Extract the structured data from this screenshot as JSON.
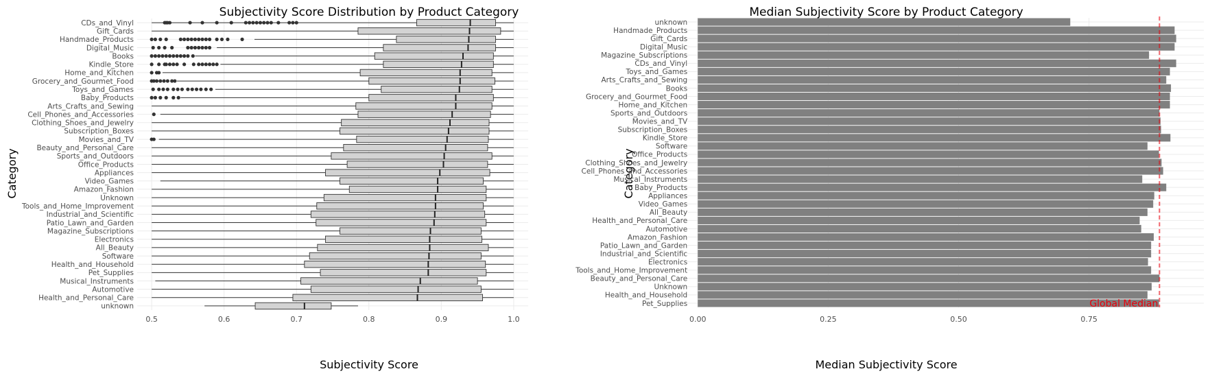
{
  "chart_data": [
    {
      "type": "box",
      "title": "Subjectivity Score Distribution by Product Category",
      "xlabel": "Subjectivity Score",
      "ylabel": "Category",
      "xlim": [
        0.48,
        1.02
      ],
      "xticks": [
        0.5,
        0.6,
        0.7,
        0.8,
        0.9,
        1.0
      ],
      "xtick_labels": [
        "0.5",
        "0.6",
        "0.7",
        "0.8",
        "0.9",
        "1.0"
      ],
      "grid": true,
      "box_color": "#d3d3d3",
      "categories": [
        "CDs_and_Vinyl",
        "Gift_Cards",
        "Handmade_Products",
        "Digital_Music",
        "Books",
        "Kindle_Store",
        "Home_and_Kitchen",
        "Grocery_and_Gourmet_Food",
        "Toys_and_Games",
        "Baby_Products",
        "Arts_Crafts_and_Sewing",
        "Cell_Phones_and_Accessories",
        "Clothing_Shoes_and_Jewelry",
        "Subscription_Boxes",
        "Movies_and_TV",
        "Beauty_and_Personal_Care",
        "Sports_and_Outdoors",
        "Office_Products",
        "Appliances",
        "Video_Games",
        "Amazon_Fashion",
        "Unknown",
        "Tools_and_Home_Improvement",
        "Industrial_and_Scientific",
        "Patio_Lawn_and_Garden",
        "Magazine_Subscriptions",
        "Electronics",
        "All_Beauty",
        "Software",
        "Health_and_Household",
        "Pet_Supplies",
        "Musical_Instruments",
        "Automotive",
        "Health_and_Personal_Care",
        "unknown"
      ],
      "boxes": [
        {
          "min": 0.5,
          "q1": 0.866,
          "median": 0.94,
          "q3": 0.975,
          "max": 1.0,
          "outliers": [
            0.518,
            0.52,
            0.522,
            0.525,
            0.553,
            0.57,
            0.59,
            0.61,
            0.63,
            0.635,
            0.64,
            0.645,
            0.65,
            0.655,
            0.66,
            0.665,
            0.675,
            0.69,
            0.695,
            0.7
          ]
        },
        {
          "min": 0.5,
          "q1": 0.785,
          "median": 0.939,
          "q3": 0.982,
          "max": 1.0,
          "outliers": []
        },
        {
          "min": 0.642,
          "q1": 0.838,
          "median": 0.938,
          "q3": 0.975,
          "max": 1.0,
          "outliers": [
            0.5,
            0.505,
            0.512,
            0.52,
            0.54,
            0.545,
            0.55,
            0.555,
            0.56,
            0.565,
            0.57,
            0.575,
            0.58,
            0.59,
            0.597,
            0.605,
            0.625
          ]
        },
        {
          "min": 0.59,
          "q1": 0.82,
          "median": 0.937,
          "q3": 0.975,
          "max": 1.0,
          "outliers": [
            0.502,
            0.51,
            0.518,
            0.528,
            0.55,
            0.555,
            0.56,
            0.565,
            0.57,
            0.575,
            0.58
          ]
        },
        {
          "min": 0.56,
          "q1": 0.808,
          "median": 0.93,
          "q3": 0.972,
          "max": 1.0,
          "outliers": [
            0.5,
            0.505,
            0.51,
            0.515,
            0.52,
            0.525,
            0.53,
            0.535,
            0.54,
            0.545,
            0.55,
            0.557
          ]
        },
        {
          "min": 0.595,
          "q1": 0.82,
          "median": 0.928,
          "q3": 0.972,
          "max": 1.0,
          "outliers": [
            0.5,
            0.51,
            0.518,
            0.52,
            0.525,
            0.53,
            0.535,
            0.545,
            0.558,
            0.565,
            0.57,
            0.575,
            0.58,
            0.585,
            0.59
          ]
        },
        {
          "min": 0.515,
          "q1": 0.788,
          "median": 0.926,
          "q3": 0.97,
          "max": 1.0,
          "outliers": [
            0.5,
            0.507,
            0.51
          ]
        },
        {
          "min": 0.535,
          "q1": 0.8,
          "median": 0.926,
          "q3": 0.974,
          "max": 1.0,
          "outliers": [
            0.5,
            0.503,
            0.507,
            0.512,
            0.517,
            0.522,
            0.528,
            0.532
          ]
        },
        {
          "min": 0.588,
          "q1": 0.817,
          "median": 0.925,
          "q3": 0.97,
          "max": 1.0,
          "outliers": [
            0.502,
            0.51,
            0.516,
            0.522,
            0.53,
            0.536,
            0.542,
            0.55,
            0.556,
            0.562,
            0.568,
            0.575,
            0.582
          ]
        },
        {
          "min": 0.54,
          "q1": 0.8,
          "median": 0.92,
          "q3": 0.972,
          "max": 1.0,
          "outliers": [
            0.5,
            0.505,
            0.512,
            0.52,
            0.53,
            0.537
          ]
        },
        {
          "min": 0.5,
          "q1": 0.782,
          "median": 0.92,
          "q3": 0.97,
          "max": 1.0,
          "outliers": []
        },
        {
          "min": 0.512,
          "q1": 0.785,
          "median": 0.915,
          "q3": 0.968,
          "max": 1.0,
          "outliers": [
            0.503
          ]
        },
        {
          "min": 0.5,
          "q1": 0.762,
          "median": 0.912,
          "q3": 0.966,
          "max": 1.0,
          "outliers": []
        },
        {
          "min": 0.5,
          "q1": 0.76,
          "median": 0.91,
          "q3": 0.966,
          "max": 1.0,
          "outliers": []
        },
        {
          "min": 0.51,
          "q1": 0.783,
          "median": 0.908,
          "q3": 0.965,
          "max": 1.0,
          "outliers": [
            0.5,
            0.503
          ]
        },
        {
          "min": 0.5,
          "q1": 0.765,
          "median": 0.906,
          "q3": 0.964,
          "max": 1.0,
          "outliers": []
        },
        {
          "min": 0.5,
          "q1": 0.748,
          "median": 0.904,
          "q3": 0.97,
          "max": 1.0,
          "outliers": []
        },
        {
          "min": 0.5,
          "q1": 0.77,
          "median": 0.903,
          "q3": 0.964,
          "max": 1.0,
          "outliers": []
        },
        {
          "min": 0.5,
          "q1": 0.74,
          "median": 0.898,
          "q3": 0.967,
          "max": 1.0,
          "outliers": []
        },
        {
          "min": 0.512,
          "q1": 0.76,
          "median": 0.895,
          "q3": 0.958,
          "max": 1.0,
          "outliers": []
        },
        {
          "min": 0.5,
          "q1": 0.773,
          "median": 0.895,
          "q3": 0.962,
          "max": 1.0,
          "outliers": []
        },
        {
          "min": 0.5,
          "q1": 0.738,
          "median": 0.892,
          "q3": 0.962,
          "max": 1.0,
          "outliers": []
        },
        {
          "min": 0.5,
          "q1": 0.728,
          "median": 0.892,
          "q3": 0.958,
          "max": 1.0,
          "outliers": []
        },
        {
          "min": 0.5,
          "q1": 0.72,
          "median": 0.891,
          "q3": 0.96,
          "max": 1.0,
          "outliers": []
        },
        {
          "min": 0.5,
          "q1": 0.727,
          "median": 0.89,
          "q3": 0.962,
          "max": 1.0,
          "outliers": []
        },
        {
          "min": 0.5,
          "q1": 0.76,
          "median": 0.885,
          "q3": 0.955,
          "max": 1.0,
          "outliers": []
        },
        {
          "min": 0.5,
          "q1": 0.74,
          "median": 0.884,
          "q3": 0.956,
          "max": 1.0,
          "outliers": []
        },
        {
          "min": 0.5,
          "q1": 0.729,
          "median": 0.884,
          "q3": 0.965,
          "max": 1.0,
          "outliers": []
        },
        {
          "min": 0.5,
          "q1": 0.718,
          "median": 0.883,
          "q3": 0.955,
          "max": 1.0,
          "outliers": []
        },
        {
          "min": 0.5,
          "q1": 0.711,
          "median": 0.882,
          "q3": 0.961,
          "max": 1.0,
          "outliers": []
        },
        {
          "min": 0.5,
          "q1": 0.733,
          "median": 0.882,
          "q3": 0.962,
          "max": 1.0,
          "outliers": []
        },
        {
          "min": 0.505,
          "q1": 0.706,
          "median": 0.871,
          "q3": 0.95,
          "max": 1.0,
          "outliers": []
        },
        {
          "min": 0.5,
          "q1": 0.72,
          "median": 0.868,
          "q3": 0.955,
          "max": 1.0,
          "outliers": []
        },
        {
          "min": 0.5,
          "q1": 0.695,
          "median": 0.867,
          "q3": 0.957,
          "max": 1.0,
          "outliers": []
        },
        {
          "min": 0.573,
          "q1": 0.643,
          "median": 0.711,
          "q3": 0.748,
          "max": 0.785,
          "outliers": []
        }
      ]
    },
    {
      "type": "bar",
      "orientation": "horizontal",
      "title": "Median Subjectivity Score by Product Category",
      "xlabel": "Median Subjectivity Score",
      "ylabel": "Category",
      "xlim": [
        -0.02,
        0.97
      ],
      "xticks": [
        0.0,
        0.25,
        0.5,
        0.75
      ],
      "xtick_labels": [
        "0.00",
        "0.25",
        "0.50",
        "0.75"
      ],
      "grid": true,
      "bar_color": "#808080",
      "reference_line": {
        "value": 0.885,
        "label": "Global Median",
        "color": "#e8000b"
      },
      "categories": [
        "unknown",
        "Handmade_Products",
        "Gift_Cards",
        "Digital_Music",
        "Magazine_Subscriptions",
        "CDs_and_Vinyl",
        "Toys_and_Games",
        "Arts_Crafts_and_Sewing",
        "Books",
        "Grocery_and_Gourmet_Food",
        "Home_and_Kitchen",
        "Sports_and_Outdoors",
        "Movies_and_TV",
        "Subscription_Boxes",
        "Kindle_Store",
        "Software",
        "Office_Products",
        "Clothing_Shoes_and_Jewelry",
        "Cell_Phones_and_Accessories",
        "Musical_Instruments",
        "Baby_Products",
        "Appliances",
        "Video_Games",
        "All_Beauty",
        "Health_and_Personal_Care",
        "Automotive",
        "Amazon_Fashion",
        "Patio_Lawn_and_Garden",
        "Industrial_and_Scientific",
        "Electronics",
        "Tools_and_Home_Improvement",
        "Beauty_and_Personal_Care",
        "Unknown",
        "Health_and_Household",
        "Pet_Supplies"
      ],
      "values": [
        0.714,
        0.914,
        0.917,
        0.914,
        0.865,
        0.917,
        0.905,
        0.898,
        0.907,
        0.905,
        0.905,
        0.885,
        0.887,
        0.888,
        0.906,
        0.862,
        0.884,
        0.889,
        0.892,
        0.852,
        0.898,
        0.875,
        0.873,
        0.862,
        0.847,
        0.85,
        0.874,
        0.869,
        0.869,
        0.863,
        0.869,
        0.885,
        0.87,
        0.862,
        0.884
      ]
    }
  ]
}
